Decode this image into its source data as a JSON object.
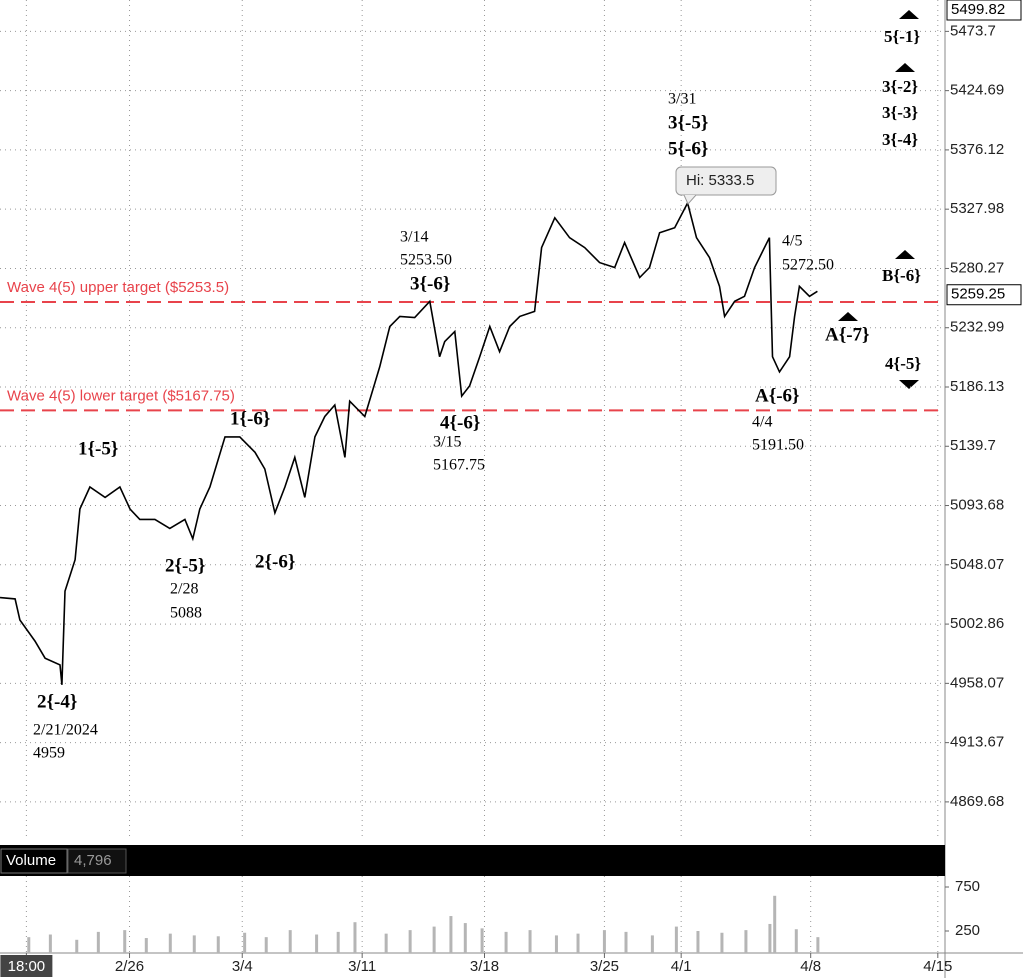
{
  "chart_data": [
    {
      "type": "line",
      "log": true,
      "grid": true,
      "color": "#000000",
      "x": [
        0,
        0.63,
        0.83,
        1.46,
        1.88,
        2.5,
        2.58,
        2.71,
        3.13,
        3.33,
        3.75,
        4.38,
        5,
        5.42,
        5.83,
        6.46,
        7.08,
        7.71,
        8.04,
        8.33,
        8.75,
        9.38,
        10,
        10.63,
        11.04,
        11.46,
        11.88,
        12.29,
        12.71,
        13.13,
        13.54,
        13.96,
        14.38,
        14.58,
        15.21,
        15.83,
        16.25,
        16.67,
        17.29,
        17.92,
        18.33,
        18.54,
        18.96,
        19.25,
        19.58,
        20,
        20.42,
        20.83,
        21.25,
        21.67,
        22.29,
        22.58,
        23.13,
        23.75,
        24.38,
        25,
        25.63,
        26.04,
        26.67,
        27.08,
        27.5,
        28.13,
        28.67,
        29.04,
        29.58,
        30,
        30.21,
        30.63,
        31.04,
        31.46,
        32.08,
        32.21,
        32.5,
        32.92,
        33.13,
        33.33,
        33.75,
        34.08
      ],
      "values": [
        5023,
        5022,
        5006,
        4990,
        4977,
        4972,
        4957,
        5028,
        5052,
        5091,
        5108,
        5100,
        5108,
        5091,
        5083,
        5083,
        5076,
        5083,
        5068,
        5091,
        5108,
        5147,
        5147,
        5135,
        5122,
        5088,
        5108,
        5131,
        5100,
        5147,
        5163,
        5172,
        5131,
        5175,
        5163,
        5202,
        5234,
        5242,
        5241,
        5254,
        5210,
        5222,
        5230,
        5179,
        5187,
        5210,
        5234,
        5214,
        5234,
        5242,
        5246,
        5297,
        5321,
        5305,
        5297,
        5285,
        5281,
        5301,
        5273,
        5281,
        5309,
        5313,
        5333,
        5305,
        5289,
        5266,
        5242,
        5254,
        5258,
        5281,
        5305,
        5210,
        5198,
        5210,
        5242,
        5266,
        5258,
        5262
      ],
      "xlim": [
        0,
        39.4
      ],
      "xticks": [
        {
          "value": 1.1,
          "label": "18:00"
        },
        {
          "value": 5.4,
          "label": "2/26"
        },
        {
          "value": 10.1,
          "label": "3/4"
        },
        {
          "value": 15.1,
          "label": "3/11"
        },
        {
          "value": 20.2,
          "label": "3/18"
        },
        {
          "value": 25.2,
          "label": "3/25"
        },
        {
          "value": 28.4,
          "label": "4/1"
        },
        {
          "value": 33.8,
          "label": "4/8"
        },
        {
          "value": 39.1,
          "label": "4/15"
        }
      ],
      "ylim": [
        4841.6,
        5499.82
      ],
      "yticks": [
        5473.7,
        5424.69,
        5376.12,
        5327.98,
        5280.27,
        5232.99,
        5186.13,
        5139.7,
        5093.68,
        5048.07,
        5002.86,
        4958.07,
        4913.67,
        4869.68
      ],
      "price_markers": [
        5499.82,
        5259.25
      ],
      "hlines": [
        {
          "label": "Wave 4(5) upper target ($5253.5)",
          "value": 5253.5,
          "color": "#e8434b"
        },
        {
          "label": "Wave 4(5) lower target ($5167.75)",
          "value": 5167.75,
          "color": "#e8434b"
        }
      ],
      "annotations": [
        "2{-4}",
        "2/21/2024",
        "4959",
        "1{-5}",
        "2{-5}",
        "2/28",
        "5088",
        "1{-6}",
        "2{-6}",
        "3/14",
        "5253.50",
        "3{-6}",
        "4{-6}",
        "3/15",
        "5167.75",
        "3/31",
        "3{-5}",
        "5{-6}",
        "4/5",
        "5272.50",
        "A{-6}",
        "4/4",
        "5191.50",
        "5{-1}",
        "3{-2}",
        "3{-3}",
        "3{-4}",
        "B{-6}",
        "A{-7}",
        "4{-5}"
      ],
      "high_label": "Hi: 5333.5"
    },
    {
      "type": "bar",
      "title": "Volume",
      "last_value": {
        "value": 4796,
        "label": "4,796"
      },
      "color": "#b5b5b5",
      "x": [
        1.2,
        2.1,
        3.2,
        4.1,
        5.2,
        6.1,
        7.1,
        8.1,
        9.1,
        10.2,
        11.1,
        12.1,
        13.2,
        14.1,
        14.8,
        16.1,
        17.1,
        18.1,
        18.8,
        19.4,
        20.1,
        21.1,
        22.1,
        23.2,
        24.1,
        25.2,
        26.1,
        27.2,
        28.2,
        29.1,
        30.1,
        31.1,
        32.1,
        32.3,
        33.2,
        34.1
      ],
      "values": [
        180,
        210,
        150,
        240,
        260,
        170,
        220,
        200,
        190,
        230,
        180,
        260,
        210,
        240,
        350,
        220,
        260,
        300,
        420,
        340,
        280,
        240,
        260,
        200,
        220,
        260,
        240,
        200,
        300,
        250,
        230,
        260,
        330,
        650,
        270,
        180
      ],
      "ylim": [
        0,
        875
      ],
      "yticks": [
        750,
        250
      ]
    }
  ]
}
